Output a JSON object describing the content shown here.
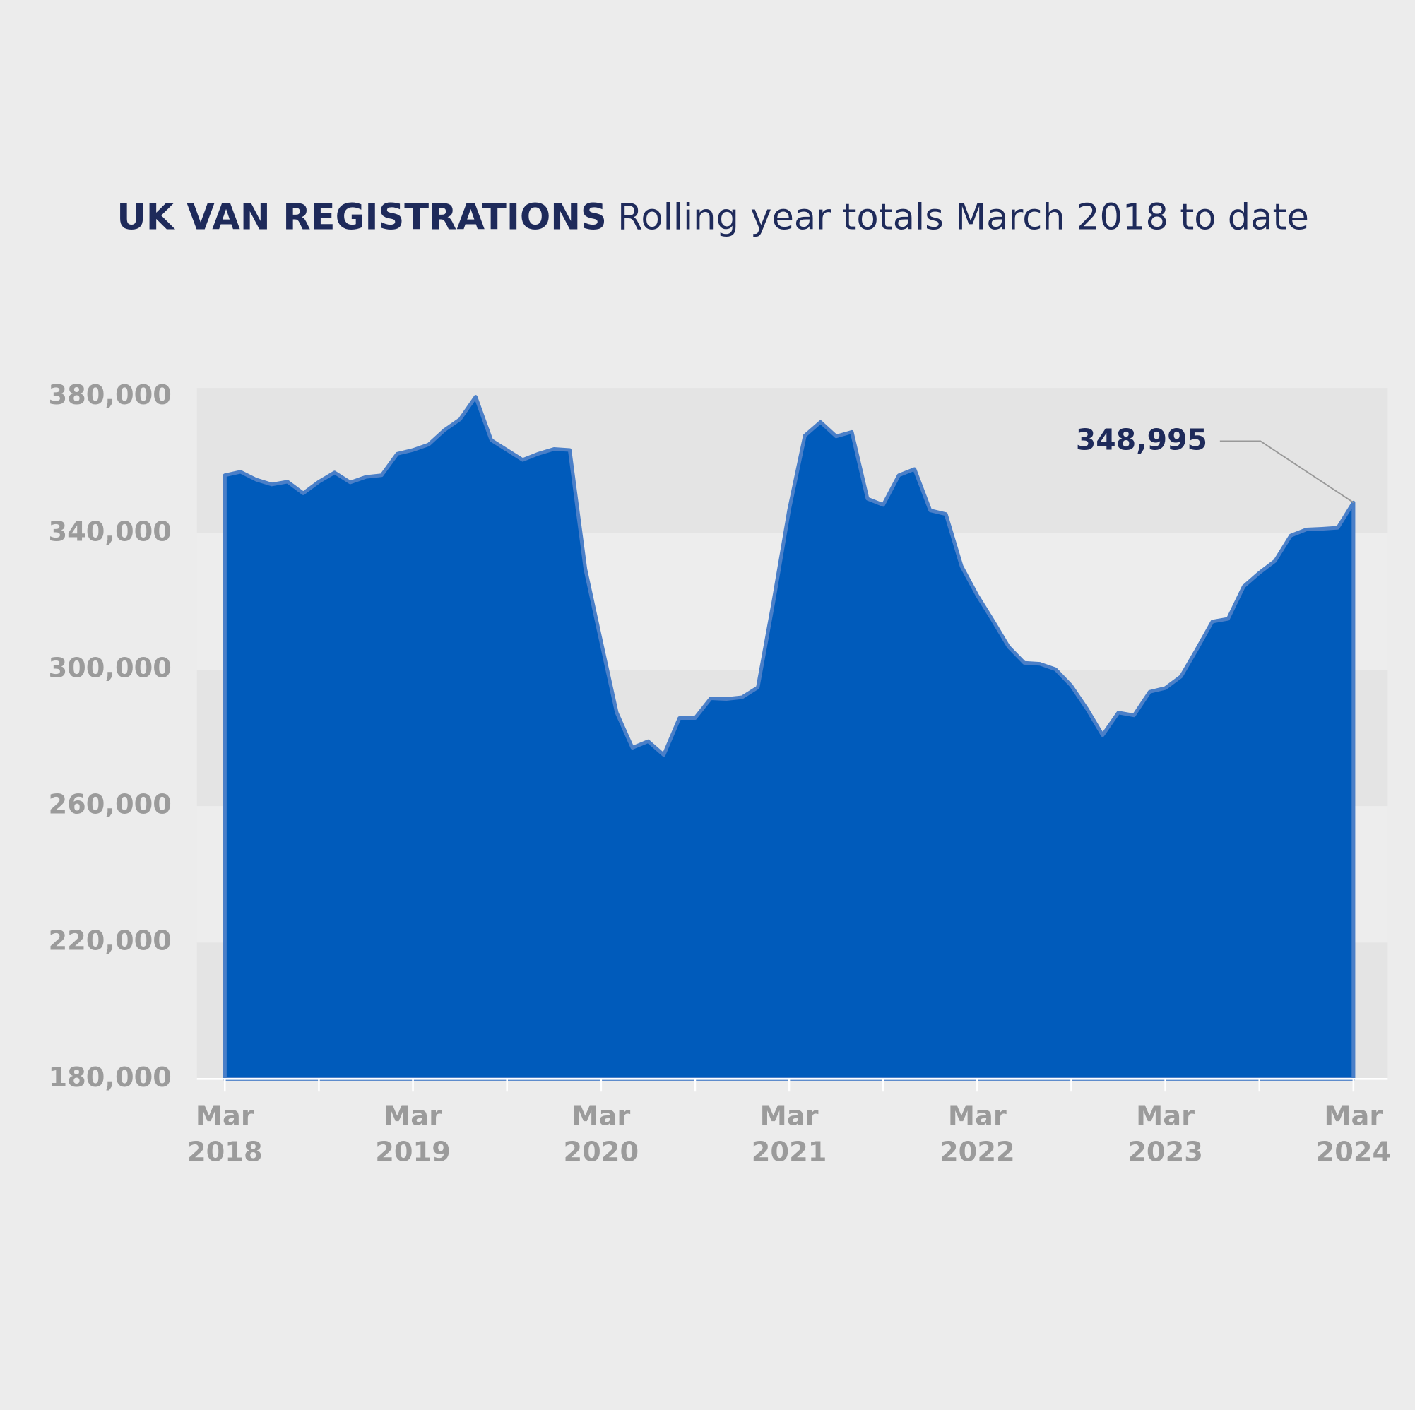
{
  "chart_data": {
    "type": "area",
    "title": "UK VAN REGISTRATIONS",
    "subtitle": "Rolling year totals March 2018 to date",
    "annotation": "348,995",
    "categories": [
      "Mar 2018",
      null,
      null,
      null,
      null,
      null,
      null,
      null,
      null,
      null,
      null,
      null,
      "Mar 2019",
      null,
      null,
      null,
      null,
      null,
      null,
      null,
      null,
      null,
      null,
      null,
      "Mar 2020",
      null,
      null,
      null,
      null,
      null,
      null,
      null,
      null,
      null,
      null,
      null,
      "Mar 2021",
      null,
      null,
      null,
      null,
      null,
      null,
      null,
      null,
      null,
      null,
      null,
      "Mar 2022",
      null,
      null,
      null,
      null,
      null,
      null,
      null,
      null,
      null,
      null,
      null,
      "Mar 2023",
      null,
      null,
      null,
      null,
      null,
      null,
      null,
      null,
      null,
      null,
      null,
      "Mar 2024"
    ],
    "values": [
      357000,
      358000,
      355700,
      354300,
      355100,
      351700,
      355100,
      357800,
      354900,
      356500,
      357000,
      363300,
      364400,
      366000,
      370200,
      373400,
      380000,
      367300,
      364400,
      361500,
      363300,
      364700,
      364400,
      329500,
      308300,
      287400,
      277100,
      279000,
      275000,
      285800,
      285800,
      291600,
      291400,
      291900,
      294800,
      320000,
      346900,
      368600,
      372600,
      368400,
      369700,
      350100,
      348300,
      357000,
      358800,
      346700,
      345600,
      330300,
      321800,
      314400,
      306700,
      302000,
      301700,
      300100,
      295300,
      288500,
      280800,
      287400,
      286600,
      293500,
      294600,
      298000,
      305900,
      314100,
      314900,
      324400,
      328400,
      331900,
      339300,
      341100,
      341300,
      341600,
      348995
    ],
    "color": "#005bbb",
    "line_color": "#4a7fc8",
    "ylim": [
      180000,
      382600
    ],
    "yticks": [
      {
        "value": 180000,
        "label": "180,000"
      },
      {
        "value": 220000,
        "label": "220,000"
      },
      {
        "value": 260000,
        "label": "260,000"
      },
      {
        "value": 300000,
        "label": "300,000"
      },
      {
        "value": 340000,
        "label": "340,000"
      },
      {
        "value": 380000,
        "label": "380,000"
      }
    ],
    "grid": true
  }
}
